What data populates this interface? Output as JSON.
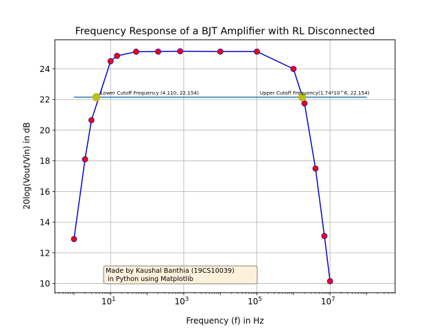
{
  "chart_data": {
    "type": "line",
    "title": "Frequency Response of a BJT Amplifier with RL Disconnected",
    "xlabel": "Frequency (f) in Hz",
    "ylabel": "20log(Vout/Vin) in dB",
    "xscale": "log",
    "xlim": [
      0.3,
      600000000
    ],
    "ylim": [
      9.4,
      25.9
    ],
    "grid": true,
    "x_tick_labels": [
      {
        "base": "10",
        "exp": "1",
        "value": 10
      },
      {
        "base": "10",
        "exp": "3",
        "value": 1000
      },
      {
        "base": "10",
        "exp": "5",
        "value": 100000
      },
      {
        "base": "10",
        "exp": "7",
        "value": 10000000
      }
    ],
    "y_ticks": [
      10,
      12,
      14,
      16,
      18,
      20,
      22,
      24
    ],
    "series": [
      {
        "type": "line",
        "color": "#0000cc",
        "x": [
          1,
          2,
          3,
          10,
          15,
          50,
          200,
          800,
          10000,
          100000,
          1000000,
          2000000,
          4000000,
          7000000,
          10000000
        ],
        "y": [
          12.9,
          18.1,
          20.65,
          24.5,
          24.85,
          25.12,
          25.13,
          25.15,
          25.13,
          25.13,
          24.0,
          21.75,
          17.5,
          13.1,
          10.15
        ]
      },
      {
        "type": "scatter",
        "color": "#ff0000",
        "edgecolor": "#0000cc",
        "x": [
          1,
          2,
          3,
          10,
          15,
          50,
          200,
          800,
          10000,
          100000,
          1000000,
          2000000,
          4000000,
          7000000,
          10000000
        ],
        "y": [
          12.9,
          18.1,
          20.65,
          24.5,
          24.85,
          25.12,
          25.13,
          25.15,
          25.13,
          25.13,
          24.0,
          21.75,
          17.5,
          13.1,
          10.15
        ]
      },
      {
        "type": "hline",
        "color": "#1f77b4",
        "y": 22.154,
        "x": [
          1,
          100000000
        ]
      },
      {
        "type": "scatter",
        "color": "#bcbd22",
        "x": [
          4.11,
          1740000
        ],
        "y": [
          22.154,
          22.154
        ]
      }
    ],
    "annotations": [
      {
        "text": "Lower Cutoff Frequency (4.110, 22.154)",
        "x": 4.11,
        "y": 22.154
      },
      {
        "text": "Upper Cutoff Frequency(1.74*10^6, 22.154)",
        "x": 1740000,
        "y": 22.154
      }
    ],
    "credit": {
      "line1": "Made by Kaushal Banthia (19CS10039)",
      "line2": " in Python using Matplotlib",
      "box_fill": "#fdf1dc",
      "box_edge": "#8a7f74"
    }
  }
}
